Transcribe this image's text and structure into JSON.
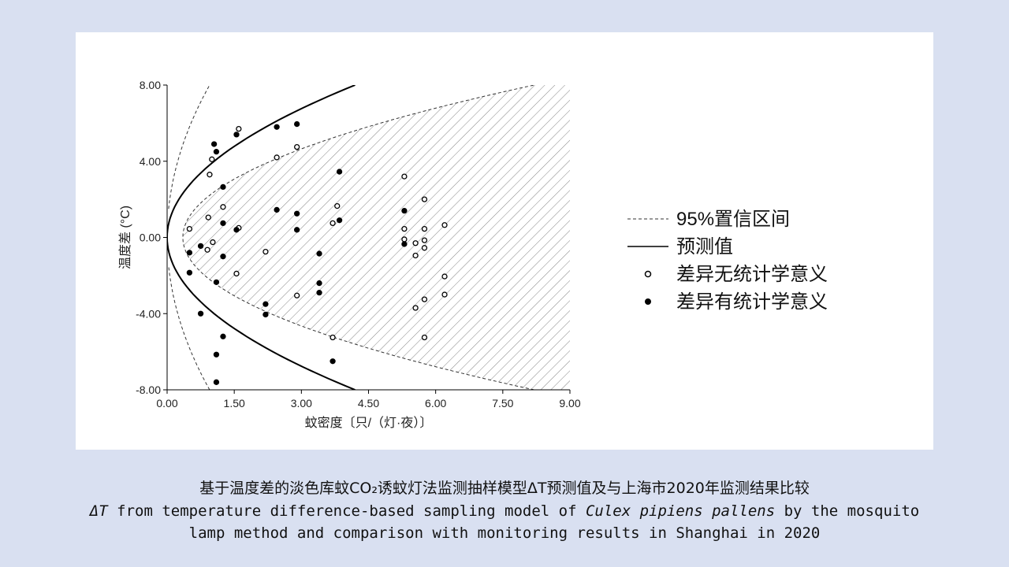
{
  "caption": {
    "zh": "基于温度差的淡色库蚊CO₂诱蚊灯法监测抽样模型ΔT预测值及与上海市2020年监测结果比较",
    "en_line1_pre": "ΔT",
    "en_line1_mid": " from temperature difference-based sampling model of ",
    "en_line1_species": "Culex pipiens pallens",
    "en_line1_post": " by the mosquito",
    "en_line2": "lamp method and comparison with monitoring results in Shanghai in 2020"
  },
  "chart_data": {
    "type": "scatter",
    "xlabel": "蚊密度〔只/（灯·夜）〕",
    "ylabel": "温度差 (°C)",
    "xlim": [
      0,
      9
    ],
    "ylim": [
      -8,
      8
    ],
    "xticks": [
      "0.00",
      "1.50",
      "3.00",
      "4.50",
      "6.00",
      "7.50",
      "9.00"
    ],
    "yticks": [
      "8.00",
      "4.00",
      "0.00",
      "-4.00",
      "-8.00"
    ],
    "legend_position": "right",
    "legend": {
      "ci": "95%置信区间",
      "pred": "预测值",
      "ns": "差异无统计学意义",
      "sig": "差异有统计学意义"
    },
    "prediction_curve": {
      "shape": "sqrt",
      "a": 2.0,
      "note_x_at_y8": 4.2
    },
    "ci_bands": {
      "inner": {
        "vertex_x": 0.35,
        "x_at_y8": 8.2
      },
      "outer": {
        "x_at_y8": 0.95
      }
    },
    "series": [
      {
        "name": "差异无统计学意义",
        "marker": "open",
        "points": [
          [
            0.5,
            0.45
          ],
          [
            0.95,
            3.3
          ],
          [
            0.92,
            1.05
          ],
          [
            1.0,
            4.1
          ],
          [
            1.02,
            -0.25
          ],
          [
            0.9,
            -0.65
          ],
          [
            1.25,
            1.6
          ],
          [
            1.6,
            5.7
          ],
          [
            1.6,
            0.5
          ],
          [
            1.55,
            -1.9
          ],
          [
            2.2,
            -0.75
          ],
          [
            2.45,
            4.2
          ],
          [
            2.9,
            4.75
          ],
          [
            2.9,
            -3.05
          ],
          [
            3.7,
            0.75
          ],
          [
            3.8,
            1.65
          ],
          [
            3.7,
            -5.25
          ],
          [
            5.3,
            3.2
          ],
          [
            5.3,
            0.45
          ],
          [
            5.3,
            -0.1
          ],
          [
            5.55,
            -0.3
          ],
          [
            5.55,
            -0.95
          ],
          [
            5.55,
            -3.7
          ],
          [
            5.75,
            2.0
          ],
          [
            5.75,
            0.45
          ],
          [
            5.75,
            -0.15
          ],
          [
            5.75,
            -0.55
          ],
          [
            5.75,
            -3.25
          ],
          [
            5.75,
            -5.25
          ],
          [
            6.2,
            0.65
          ],
          [
            6.2,
            -2.05
          ],
          [
            6.2,
            -3.0
          ]
        ]
      },
      {
        "name": "差异有统计学意义",
        "marker": "filled",
        "points": [
          [
            0.5,
            -0.8
          ],
          [
            0.5,
            -1.85
          ],
          [
            0.75,
            -4.0
          ],
          [
            0.75,
            -0.45
          ],
          [
            1.05,
            4.9
          ],
          [
            1.1,
            4.5
          ],
          [
            1.25,
            2.65
          ],
          [
            1.25,
            0.75
          ],
          [
            1.25,
            -1.0
          ],
          [
            1.1,
            -2.35
          ],
          [
            1.1,
            -6.15
          ],
          [
            1.25,
            -5.2
          ],
          [
            1.1,
            -7.6
          ],
          [
            1.55,
            5.4
          ],
          [
            1.55,
            0.4
          ],
          [
            2.2,
            -3.5
          ],
          [
            2.2,
            -4.05
          ],
          [
            2.45,
            5.8
          ],
          [
            2.45,
            1.45
          ],
          [
            2.9,
            5.95
          ],
          [
            2.9,
            1.25
          ],
          [
            2.9,
            0.4
          ],
          [
            3.4,
            -0.85
          ],
          [
            3.4,
            -2.4
          ],
          [
            3.4,
            -2.9
          ],
          [
            3.7,
            -6.5
          ],
          [
            3.85,
            3.45
          ],
          [
            3.85,
            0.9
          ],
          [
            5.3,
            1.4
          ],
          [
            5.3,
            -0.35
          ]
        ]
      }
    ]
  }
}
